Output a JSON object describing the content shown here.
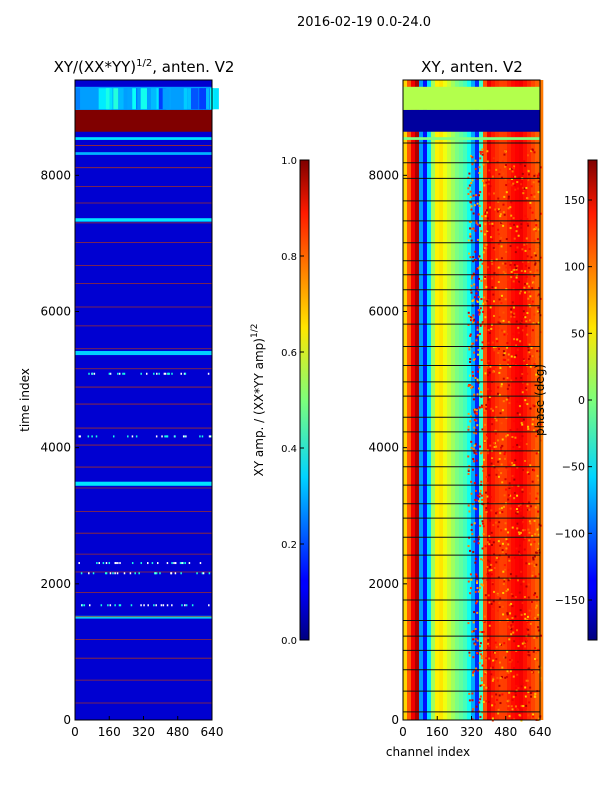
{
  "figure_title": "2016-02-19 0.0-24.0",
  "chart_data": [
    {
      "type": "heatmap",
      "title": "XY/(XX*YY)^{1/2}, anten. V2",
      "title_main": "XY/(XX*YY)",
      "title_sup": "1/2",
      "title_tail": ", anten. V2",
      "ylabel": "time index",
      "xlabel": "",
      "xlim": [
        0,
        640
      ],
      "ylim": [
        0,
        9400
      ],
      "x_ticks": [
        0,
        160,
        320,
        480,
        640
      ],
      "y_ticks": [
        0,
        2000,
        4000,
        6000,
        8000
      ],
      "colormap": "jet",
      "colorbar": {
        "label_main": "XY amp. / (XX*YY amp)",
        "label_sup": "1/2",
        "range": [
          0.0,
          1.0
        ],
        "ticks": [
          0.0,
          0.2,
          0.4,
          0.6,
          0.8,
          1.0
        ],
        "tick_labels": [
          "0.0",
          "0.2",
          "0.4",
          "0.6",
          "0.8",
          "1.0"
        ]
      },
      "bands": [
        {
          "y_start": 8640,
          "y_end": 8960,
          "value": 1.0
        },
        {
          "y_start": 8960,
          "y_end": 9300,
          "value": 0.32
        },
        {
          "y_start": 8520,
          "y_end": 8560,
          "value": 0.35
        },
        {
          "y_start": 8300,
          "y_end": 8340,
          "value": 0.3
        },
        {
          "y_start": 7320,
          "y_end": 7370,
          "value": 0.35
        },
        {
          "y_start": 5360,
          "y_end": 5420,
          "value": 0.33
        },
        {
          "y_start": 3440,
          "y_end": 3500,
          "value": 0.35
        },
        {
          "y_start": 1490,
          "y_end": 1530,
          "value": 0.35
        }
      ]
    },
    {
      "type": "heatmap",
      "title": "XY, anten. V2",
      "ylabel": "",
      "xlabel": "channel index",
      "xlim": [
        0,
        640
      ],
      "ylim": [
        0,
        9400
      ],
      "x_ticks": [
        0,
        160,
        320,
        480,
        640
      ],
      "y_ticks": [
        0,
        2000,
        4000,
        6000,
        8000
      ],
      "colormap": "jet",
      "colorbar": {
        "label": "phase (deg)",
        "range": [
          -180,
          180
        ],
        "ticks": [
          -150,
          -100,
          -50,
          0,
          50,
          100,
          150
        ],
        "tick_labels": [
          "−150",
          "−100",
          "−50",
          "0",
          "50",
          "100",
          "150"
        ]
      },
      "phase_profile": {
        "channels": [
          0,
          30,
          60,
          80,
          100,
          120,
          140,
          160,
          200,
          240,
          280,
          300,
          320,
          340,
          380,
          420,
          460,
          500,
          540,
          580,
          620,
          640
        ],
        "phase_deg": [
          60,
          130,
          170,
          -170,
          -110,
          -20,
          40,
          60,
          30,
          0,
          -20,
          -40,
          -80,
          -130,
          150,
          120,
          110,
          130,
          140,
          120,
          100,
          90
        ]
      },
      "bands": [
        {
          "y_start": 8640,
          "y_end": 8960,
          "value": -170
        },
        {
          "y_start": 8960,
          "y_end": 9300,
          "value": 10
        },
        {
          "y_start": 8520,
          "y_end": 8560,
          "value": 0
        }
      ]
    }
  ]
}
